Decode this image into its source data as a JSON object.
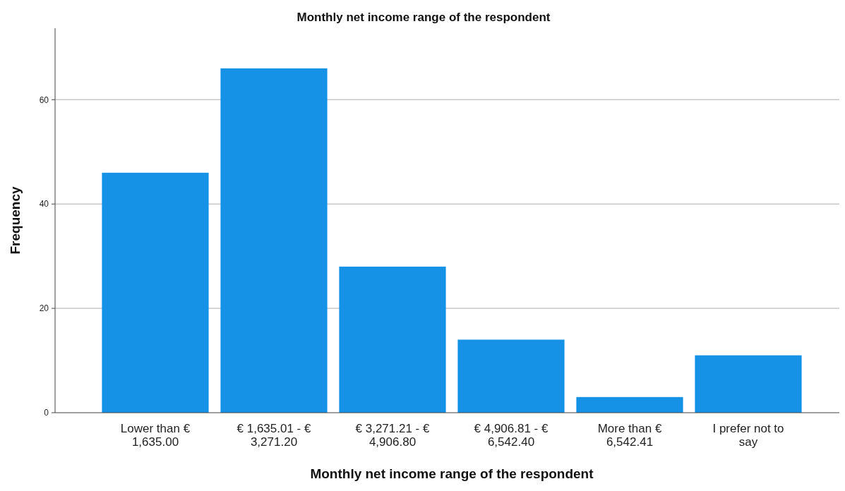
{
  "chart_data": {
    "type": "bar",
    "title": "Monthly net income range of the respondent",
    "xlabel": "Monthly net income range of the respondent",
    "ylabel": "Frequency",
    "categories": [
      "Lower than € 1,635.00",
      "€ 1,635.01 - € 3,271.20",
      "€ 3,271.21 - € 4,906.80",
      "€ 4,906.81 - € 6,542.40",
      "More than € 6,542.41",
      "I prefer not to say"
    ],
    "values": [
      46,
      66,
      28,
      14,
      3,
      11
    ],
    "color": "#1591e6",
    "ylim": [
      0,
      73.7
    ],
    "yticks": [
      0,
      20,
      40,
      60
    ],
    "grid": "y"
  }
}
